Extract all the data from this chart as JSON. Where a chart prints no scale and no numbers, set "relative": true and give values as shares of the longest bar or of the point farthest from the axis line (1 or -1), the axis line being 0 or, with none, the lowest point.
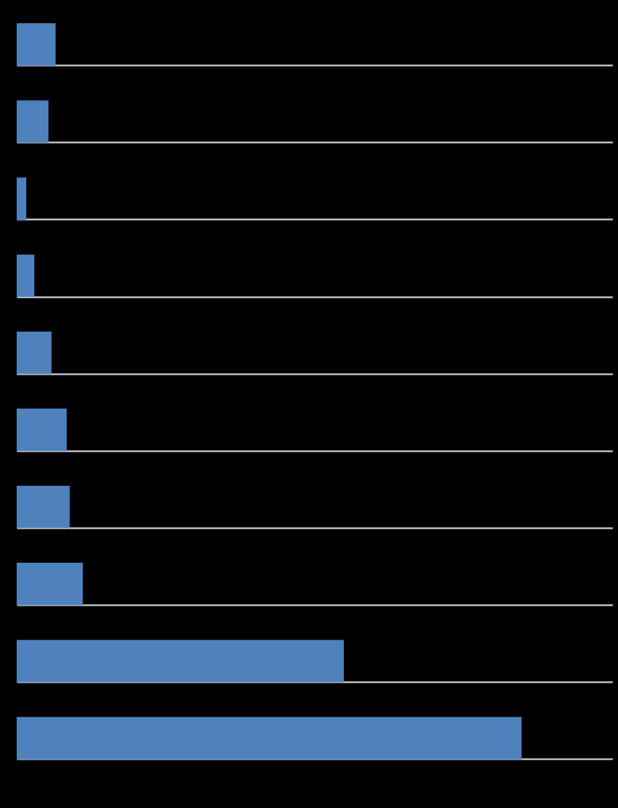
{
  "chart_data": {
    "type": "bar",
    "orientation": "horizontal",
    "relative": true,
    "grid": "y",
    "legend": false,
    "categories": [
      null,
      null,
      null,
      null,
      null,
      null,
      null,
      null,
      null,
      null
    ],
    "series": [
      {
        "color": "#4f81bd",
        "values": [
          0.077,
          0.063,
          0.019,
          0.035,
          0.069,
          0.099,
          0.105,
          0.131,
          0.648,
          1
        ]
      }
    ]
  }
}
